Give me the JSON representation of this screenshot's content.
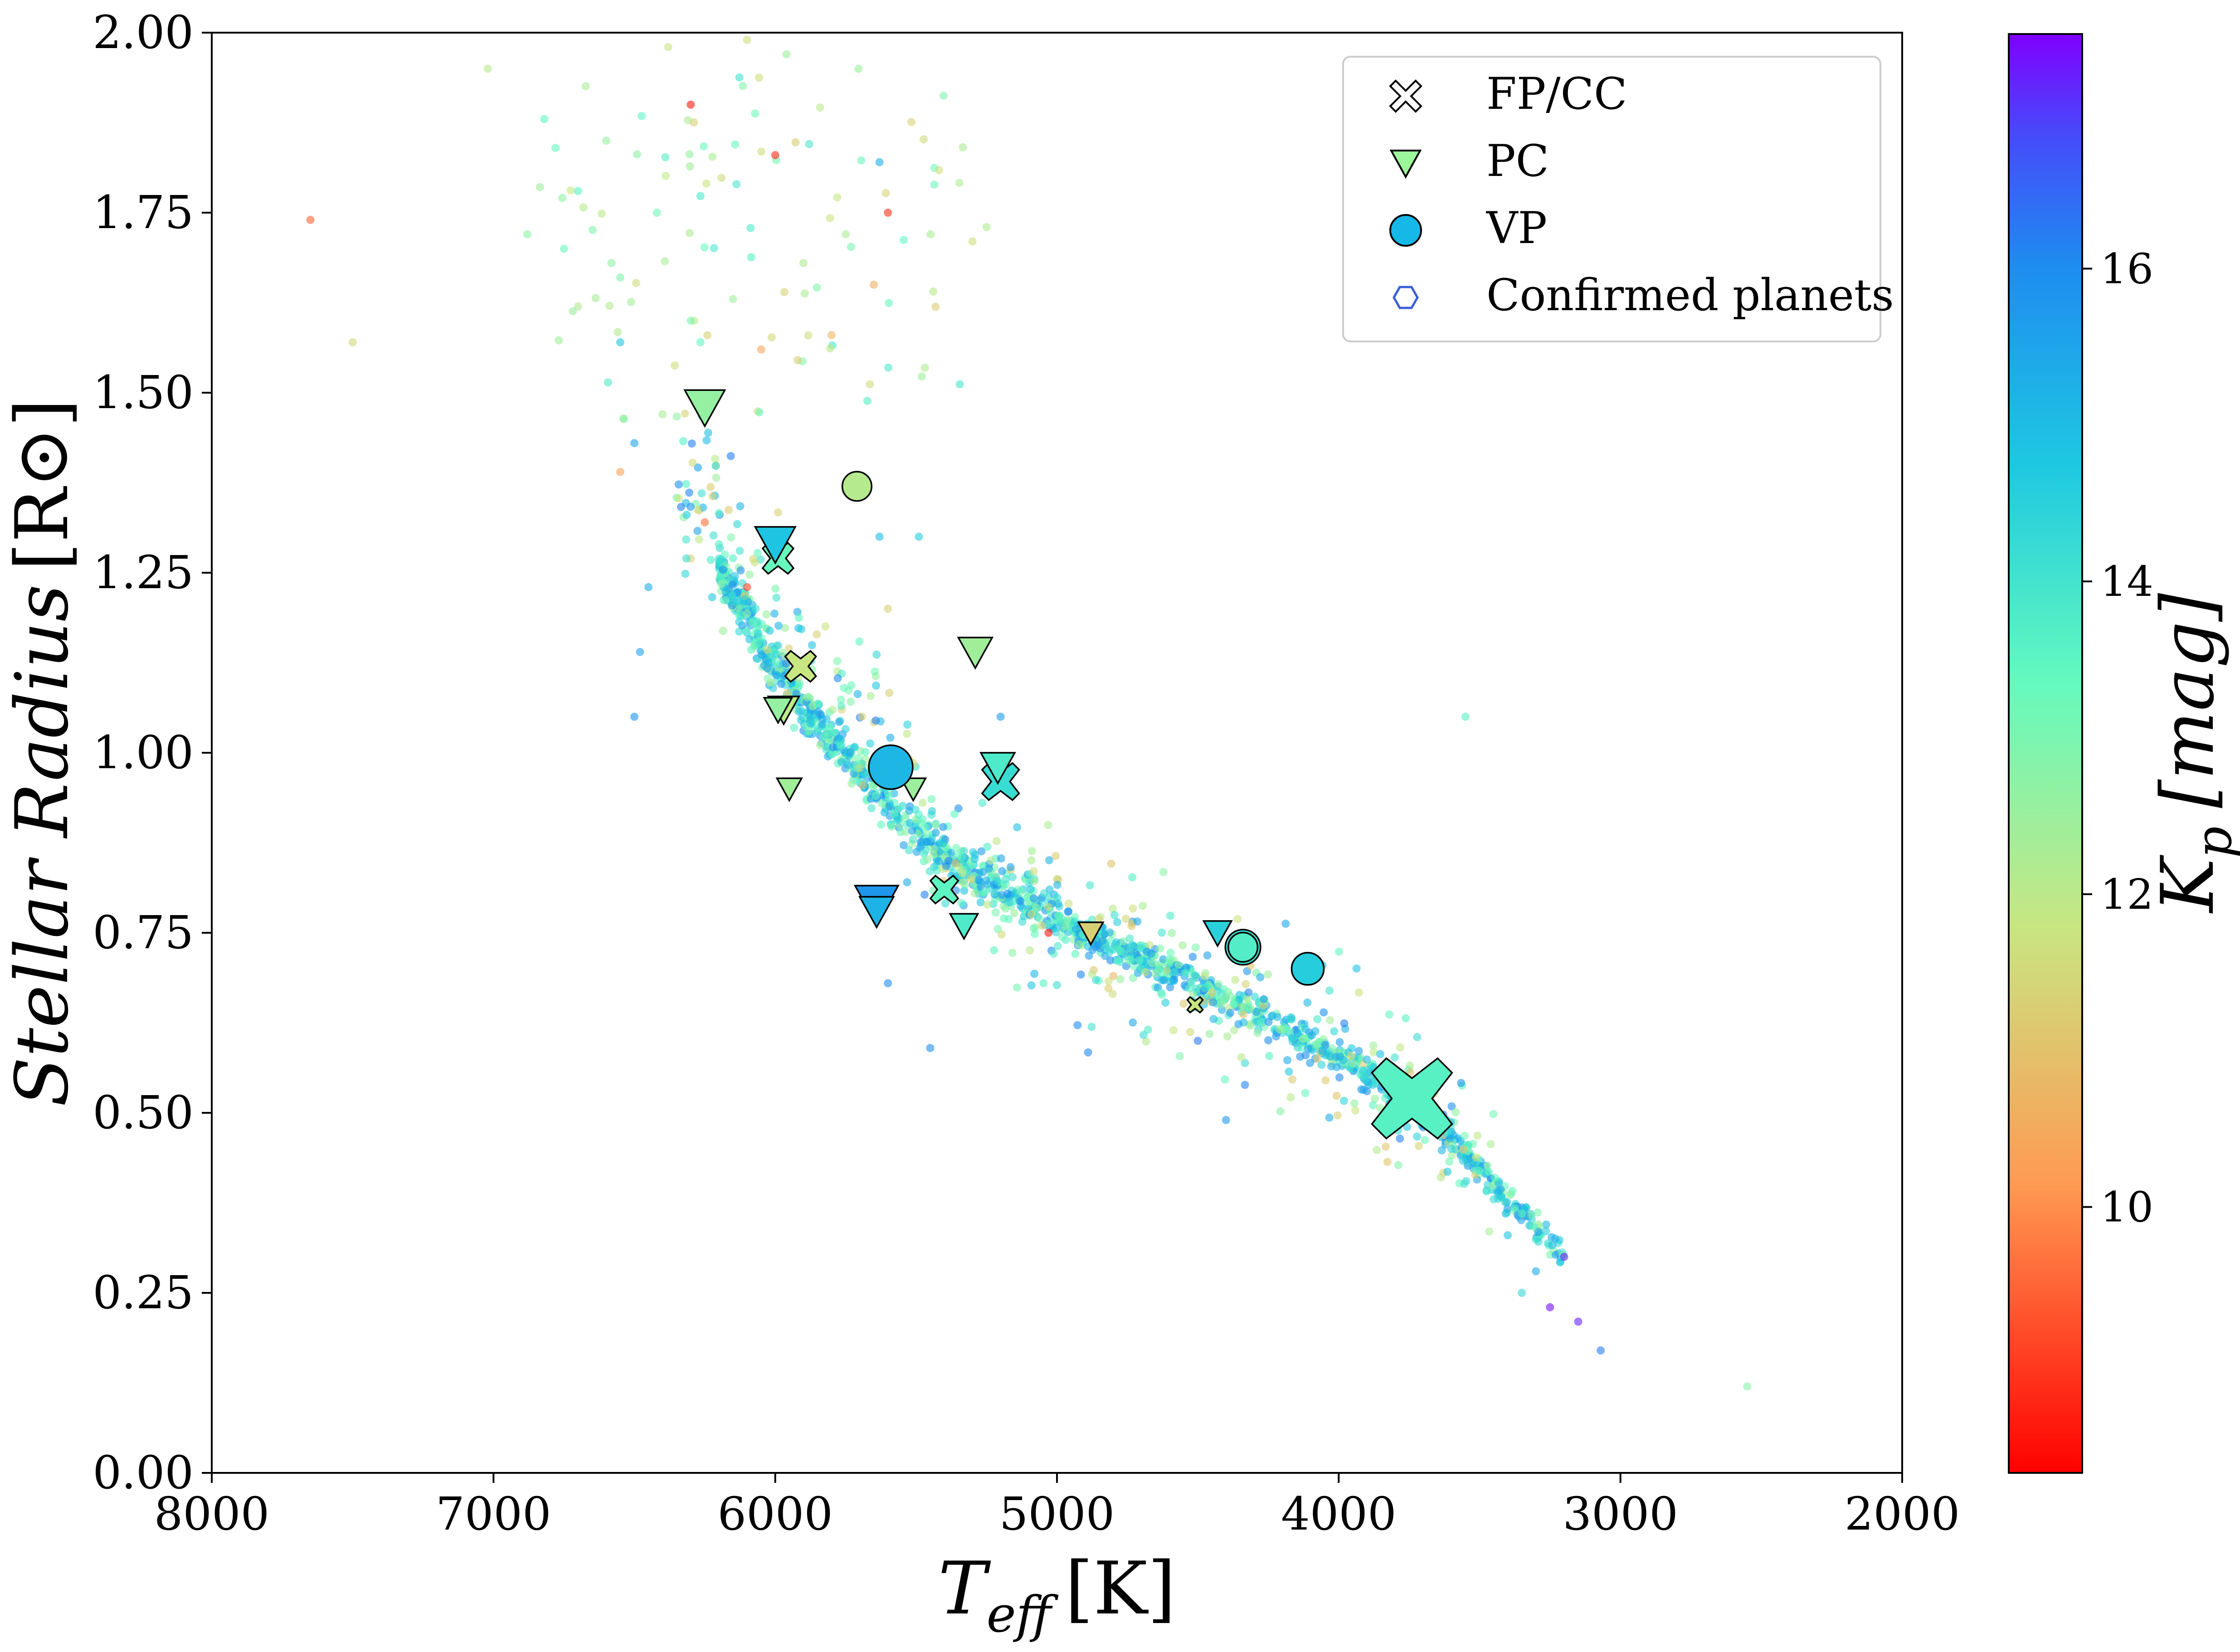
{
  "chart_data": {
    "type": "scatter",
    "title": "",
    "xlabel": "T_eff [K]",
    "xlabel_parts": {
      "main": "T",
      "sub": "eff",
      "unit": "[K]"
    },
    "ylabel": "Stellar Radius [R☉]",
    "ylabel_parts": {
      "main": "Stellar Radius",
      "unit_open": "[R",
      "unit_close": "]"
    },
    "xlim": [
      8000,
      2000
    ],
    "x_inverted": true,
    "ylim": [
      0.0,
      2.0
    ],
    "x_ticks": [
      "8000",
      "7000",
      "6000",
      "5000",
      "4000",
      "3000",
      "2000"
    ],
    "x_tick_values": [
      8000,
      7000,
      6000,
      5000,
      4000,
      3000,
      2000
    ],
    "y_ticks": [
      "0.00",
      "0.25",
      "0.50",
      "0.75",
      "1.00",
      "1.25",
      "1.50",
      "1.75",
      "2.00"
    ],
    "y_tick_values": [
      0.0,
      0.25,
      0.5,
      0.75,
      1.0,
      1.25,
      1.5,
      1.75,
      2.0
    ],
    "grid": false,
    "colorbar": {
      "label": "K_p [mag]",
      "label_parts": {
        "main": "K",
        "sub": "p",
        "unit": "[mag]"
      },
      "cmap": "rainbow_r",
      "range": [
        8.3,
        17.5
      ],
      "ticks": [
        "10",
        "12",
        "14",
        "16"
      ],
      "tick_values": [
        10,
        12,
        14,
        16
      ]
    },
    "legend": {
      "placement": "top-right",
      "entries": [
        {
          "label": "FP/CC",
          "marker": "x-filled"
        },
        {
          "label": "PC",
          "marker": "triangle-down"
        },
        {
          "label": "VP",
          "marker": "circle"
        },
        {
          "label": "Confirmed planets",
          "marker": "hexagon"
        }
      ]
    },
    "series": [
      {
        "name": "Confirmed planets",
        "marker": "hexagon",
        "points": [
          {
            "x": 6300,
            "y": 1.9,
            "kp": 8.6
          },
          {
            "x": 7650,
            "y": 1.74,
            "kp": 9.5
          },
          {
            "x": 7500,
            "y": 1.57,
            "kp": 11.5
          },
          {
            "x": 5600,
            "y": 1.75,
            "kp": 8.9
          },
          {
            "x": 6000,
            "y": 1.83,
            "kp": 8.8
          },
          {
            "x": 5030,
            "y": 0.75,
            "kp": 8.6
          },
          {
            "x": 6820,
            "y": 1.88,
            "kp": 13.5
          },
          {
            "x": 6780,
            "y": 1.84,
            "kp": 13.4
          },
          {
            "x": 6880,
            "y": 1.72,
            "kp": 12.8
          },
          {
            "x": 6700,
            "y": 1.78,
            "kp": 13.6
          },
          {
            "x": 6750,
            "y": 1.7,
            "kp": 13.3
          },
          {
            "x": 6600,
            "y": 1.85,
            "kp": 12.6
          },
          {
            "x": 6550,
            "y": 1.66,
            "kp": 12.9
          },
          {
            "x": 6420,
            "y": 1.75,
            "kp": 13.2
          },
          {
            "x": 7020,
            "y": 1.95,
            "kp": 12.0
          },
          {
            "x": 6380,
            "y": 1.98,
            "kp": 11.8
          },
          {
            "x": 6100,
            "y": 1.99,
            "kp": 11.6
          },
          {
            "x": 5960,
            "y": 1.97,
            "kp": 12.5
          },
          {
            "x": 5750,
            "y": 1.72,
            "kp": 12.3
          },
          {
            "x": 5300,
            "y": 1.71,
            "kp": 11.6
          },
          {
            "x": 5250,
            "y": 1.73,
            "kp": 12.2
          },
          {
            "x": 6300,
            "y": 1.6,
            "kp": 13.0
          },
          {
            "x": 6150,
            "y": 1.63,
            "kp": 12.4
          },
          {
            "x": 5900,
            "y": 1.68,
            "kp": 12.2
          },
          {
            "x": 5650,
            "y": 1.65,
            "kp": 10.6
          },
          {
            "x": 6050,
            "y": 1.56,
            "kp": 10.4
          },
          {
            "x": 6550,
            "y": 1.39,
            "kp": 10.3
          },
          {
            "x": 6550,
            "y": 1.57,
            "kp": 14.8
          },
          {
            "x": 6500,
            "y": 1.43,
            "kp": 15.5
          },
          {
            "x": 6450,
            "y": 1.23,
            "kp": 15.3
          },
          {
            "x": 6480,
            "y": 1.14,
            "kp": 15.5
          },
          {
            "x": 5630,
            "y": 1.82,
            "kp": 15.3
          },
          {
            "x": 5630,
            "y": 1.3,
            "kp": 15.0
          },
          {
            "x": 5490,
            "y": 1.3,
            "kp": 14.6
          },
          {
            "x": 3550,
            "y": 1.05,
            "kp": 13.6
          },
          {
            "x": 2550,
            "y": 0.12,
            "kp": 12.8
          },
          {
            "x": 3200,
            "y": 0.3,
            "kp": 17.2
          },
          {
            "x": 3250,
            "y": 0.23,
            "kp": 17.4
          },
          {
            "x": 3150,
            "y": 0.21,
            "kp": 17.2
          },
          {
            "x": 3070,
            "y": 0.17,
            "kp": 16.2
          },
          {
            "x": 3300,
            "y": 0.28,
            "kp": 15.4
          },
          {
            "x": 3400,
            "y": 0.33,
            "kp": 14.8
          },
          {
            "x": 3450,
            "y": 0.38,
            "kp": 14.2
          },
          {
            "x": 3600,
            "y": 0.45,
            "kp": 14.4
          },
          {
            "x": 3700,
            "y": 0.48,
            "kp": 16.0
          },
          {
            "x": 3900,
            "y": 0.53,
            "kp": 15.8
          },
          {
            "x": 3500,
            "y": 0.42,
            "kp": 14.0
          },
          {
            "x": 3350,
            "y": 0.25,
            "kp": 14.3
          },
          {
            "x": 4500,
            "y": 0.6,
            "kp": 16.3
          },
          {
            "x": 4400,
            "y": 0.49,
            "kp": 15.8
          },
          {
            "x": 5450,
            "y": 0.59,
            "kp": 16.0
          },
          {
            "x": 5600,
            "y": 0.68,
            "kp": 16.0
          },
          {
            "x": 6500,
            "y": 1.05,
            "kp": 15.9
          },
          {
            "x": 4880,
            "y": 0.75,
            "kp": 10.5
          },
          {
            "x": 4800,
            "y": 0.69,
            "kp": 10.8
          },
          {
            "x": 4300,
            "y": 0.72,
            "kp": 10.6
          },
          {
            "x": 5200,
            "y": 1.05,
            "kp": 15.7
          },
          {
            "x": 6250,
            "y": 1.32,
            "kp": 9.6
          },
          {
            "x": 6100,
            "y": 1.23,
            "kp": 9.1
          },
          {
            "x": 5800,
            "y": 1.58,
            "kp": 10.7
          },
          {
            "x": 5600,
            "y": 1.2,
            "kp": 11.3
          },
          {
            "x": 6400,
            "y": 1.47,
            "kp": 12.3
          }
        ],
        "band_model": {
          "description": "dense main-sequence band of confirmed planet hosts",
          "knots_x": [
            6250,
            6150,
            6000,
            5850,
            5700,
            5550,
            5400,
            5200,
            5000,
            4800,
            4600,
            4400,
            4200,
            4000,
            3800,
            3600,
            3400,
            3200
          ],
          "knots_y": [
            1.3,
            1.22,
            1.12,
            1.04,
            0.97,
            0.91,
            0.86,
            0.81,
            0.77,
            0.73,
            0.7,
            0.66,
            0.62,
            0.58,
            0.53,
            0.47,
            0.38,
            0.3
          ],
          "kp_range": [
            12.5,
            16.0
          ]
        }
      },
      {
        "name": "FP/CC",
        "marker": "x-filled",
        "points": [
          {
            "x": 5990,
            "y": 1.27,
            "kp": 13.3,
            "size": 1.0
          },
          {
            "x": 5910,
            "y": 1.12,
            "kp": 11.8,
            "size": 1.0
          },
          {
            "x": 5200,
            "y": 0.96,
            "kp": 14.2,
            "size": 1.2
          },
          {
            "x": 5400,
            "y": 0.81,
            "kp": 13.5,
            "size": 0.9
          },
          {
            "x": 4510,
            "y": 0.65,
            "kp": 11.8,
            "size": 0.5
          },
          {
            "x": 3740,
            "y": 0.52,
            "kp": 13.6,
            "size": 2.6
          }
        ]
      },
      {
        "name": "PC",
        "marker": "triangle-down",
        "points": [
          {
            "x": 6250,
            "y": 1.48,
            "kp": 12.6,
            "size": 1.3
          },
          {
            "x": 6000,
            "y": 1.29,
            "kp": 14.8,
            "size": 1.3
          },
          {
            "x": 5290,
            "y": 1.14,
            "kp": 12.4,
            "size": 1.1
          },
          {
            "x": 5970,
            "y": 1.06,
            "kp": 12.0,
            "size": 1.0
          },
          {
            "x": 5990,
            "y": 1.06,
            "kp": 12.6,
            "size": 0.9
          },
          {
            "x": 5950,
            "y": 0.95,
            "kp": 12.4,
            "size": 0.8
          },
          {
            "x": 5510,
            "y": 0.95,
            "kp": 12.5,
            "size": 0.8
          },
          {
            "x": 5210,
            "y": 0.98,
            "kp": 13.8,
            "size": 1.1
          },
          {
            "x": 5640,
            "y": 0.79,
            "kp": 15.8,
            "size": 1.4
          },
          {
            "x": 5640,
            "y": 0.78,
            "kp": 15.2,
            "size": 1.1
          },
          {
            "x": 5330,
            "y": 0.76,
            "kp": 13.8,
            "size": 0.9
          },
          {
            "x": 4880,
            "y": 0.75,
            "kp": 11.3,
            "size": 0.8
          },
          {
            "x": 4430,
            "y": 0.75,
            "kp": 14.5,
            "size": 0.9
          }
        ]
      },
      {
        "name": "VP",
        "marker": "circle",
        "points": [
          {
            "x": 5710,
            "y": 1.37,
            "kp": 12.1,
            "size": 1.0
          },
          {
            "x": 5590,
            "y": 0.98,
            "kp": 15.1,
            "size": 1.5
          },
          {
            "x": 4340,
            "y": 0.73,
            "kp": 14.1,
            "size": 1.2
          },
          {
            "x": 4340,
            "y": 0.73,
            "kp": 13.7,
            "size": 1.0
          },
          {
            "x": 4110,
            "y": 0.7,
            "kp": 14.6,
            "size": 1.1
          }
        ]
      }
    ]
  }
}
